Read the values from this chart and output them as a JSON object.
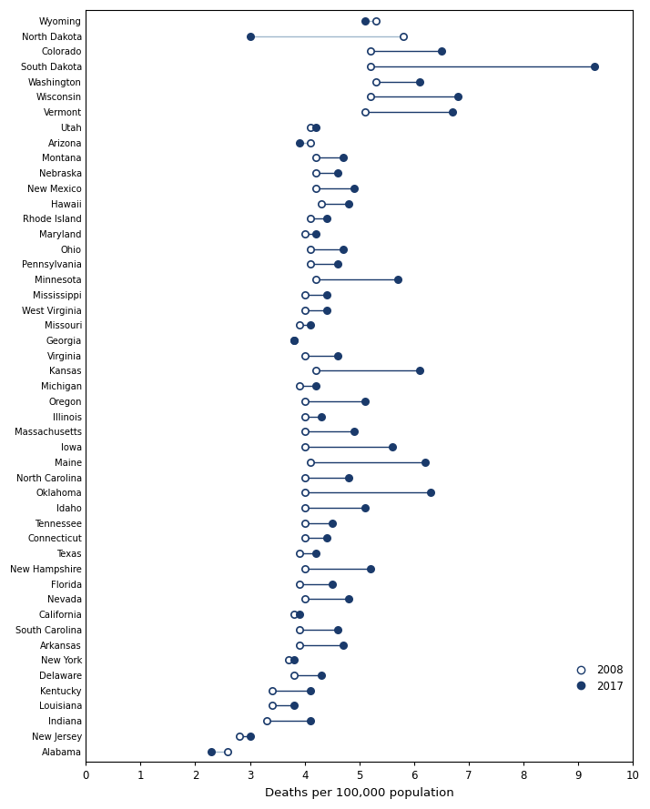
{
  "states": [
    "Wyoming",
    "North Dakota",
    "Colorado",
    "South Dakota",
    "Washington",
    "Wisconsin",
    "Vermont",
    "Utah",
    "Arizona",
    "Montana",
    "Nebraska",
    "New Mexico",
    "Hawaii",
    "Rhode Island",
    "Maryland",
    "Ohio",
    "Pennsylvania",
    "Minnesota",
    "Mississippi",
    "West Virginia",
    "Missouri",
    "Georgia",
    "Virginia",
    "Kansas",
    "Michigan",
    "Oregon",
    "Illinois",
    "Massachusetts",
    "Iowa",
    "Maine",
    "North Carolina",
    "Oklahoma",
    "Idaho",
    "Tennessee",
    "Connecticut",
    "Texas",
    "New Hampshire",
    "Florida",
    "Nevada",
    "California",
    "South Carolina",
    "Arkansas",
    "New York",
    "Delaware",
    "Kentucky",
    "Louisiana",
    "Indiana",
    "New Jersey",
    "Alabama"
  ],
  "val_2008": [
    5.3,
    5.8,
    5.2,
    5.2,
    5.3,
    5.2,
    5.1,
    4.1,
    4.1,
    4.2,
    4.2,
    4.2,
    4.3,
    4.1,
    4.0,
    4.1,
    4.1,
    4.2,
    4.0,
    4.0,
    3.9,
    3.8,
    4.0,
    4.2,
    3.9,
    4.0,
    4.0,
    4.0,
    4.0,
    4.1,
    4.0,
    4.0,
    4.0,
    4.0,
    4.0,
    3.9,
    4.0,
    3.9,
    4.0,
    3.8,
    3.9,
    3.9,
    3.7,
    3.8,
    3.4,
    3.4,
    3.3,
    2.8,
    2.6
  ],
  "val_2017": [
    5.1,
    3.0,
    6.5,
    9.3,
    6.1,
    6.8,
    6.7,
    4.2,
    3.9,
    4.7,
    4.6,
    4.9,
    4.8,
    4.4,
    4.2,
    4.7,
    4.6,
    5.7,
    4.4,
    4.4,
    4.1,
    3.8,
    4.6,
    6.1,
    4.2,
    5.1,
    4.3,
    4.9,
    5.6,
    6.2,
    4.8,
    6.3,
    5.1,
    4.5,
    4.4,
    4.2,
    5.2,
    4.5,
    4.8,
    3.9,
    4.6,
    4.7,
    3.8,
    4.3,
    4.1,
    3.8,
    4.1,
    3.0,
    2.3
  ],
  "dot_color": "#1a3a6b",
  "line_color_increase": "#1a3a6b",
  "line_color_decrease": "#a0b8cc",
  "xlabel": "Deaths per 100,000 population",
  "xlim": [
    0,
    10
  ],
  "xticks": [
    0,
    1,
    2,
    3,
    4,
    5,
    6,
    7,
    8,
    9,
    10
  ],
  "legend_2008_label": "2008",
  "legend_2017_label": "2017",
  "background_color": "#ffffff",
  "figsize": [
    7.14,
    8.89
  ],
  "dpi": 100
}
